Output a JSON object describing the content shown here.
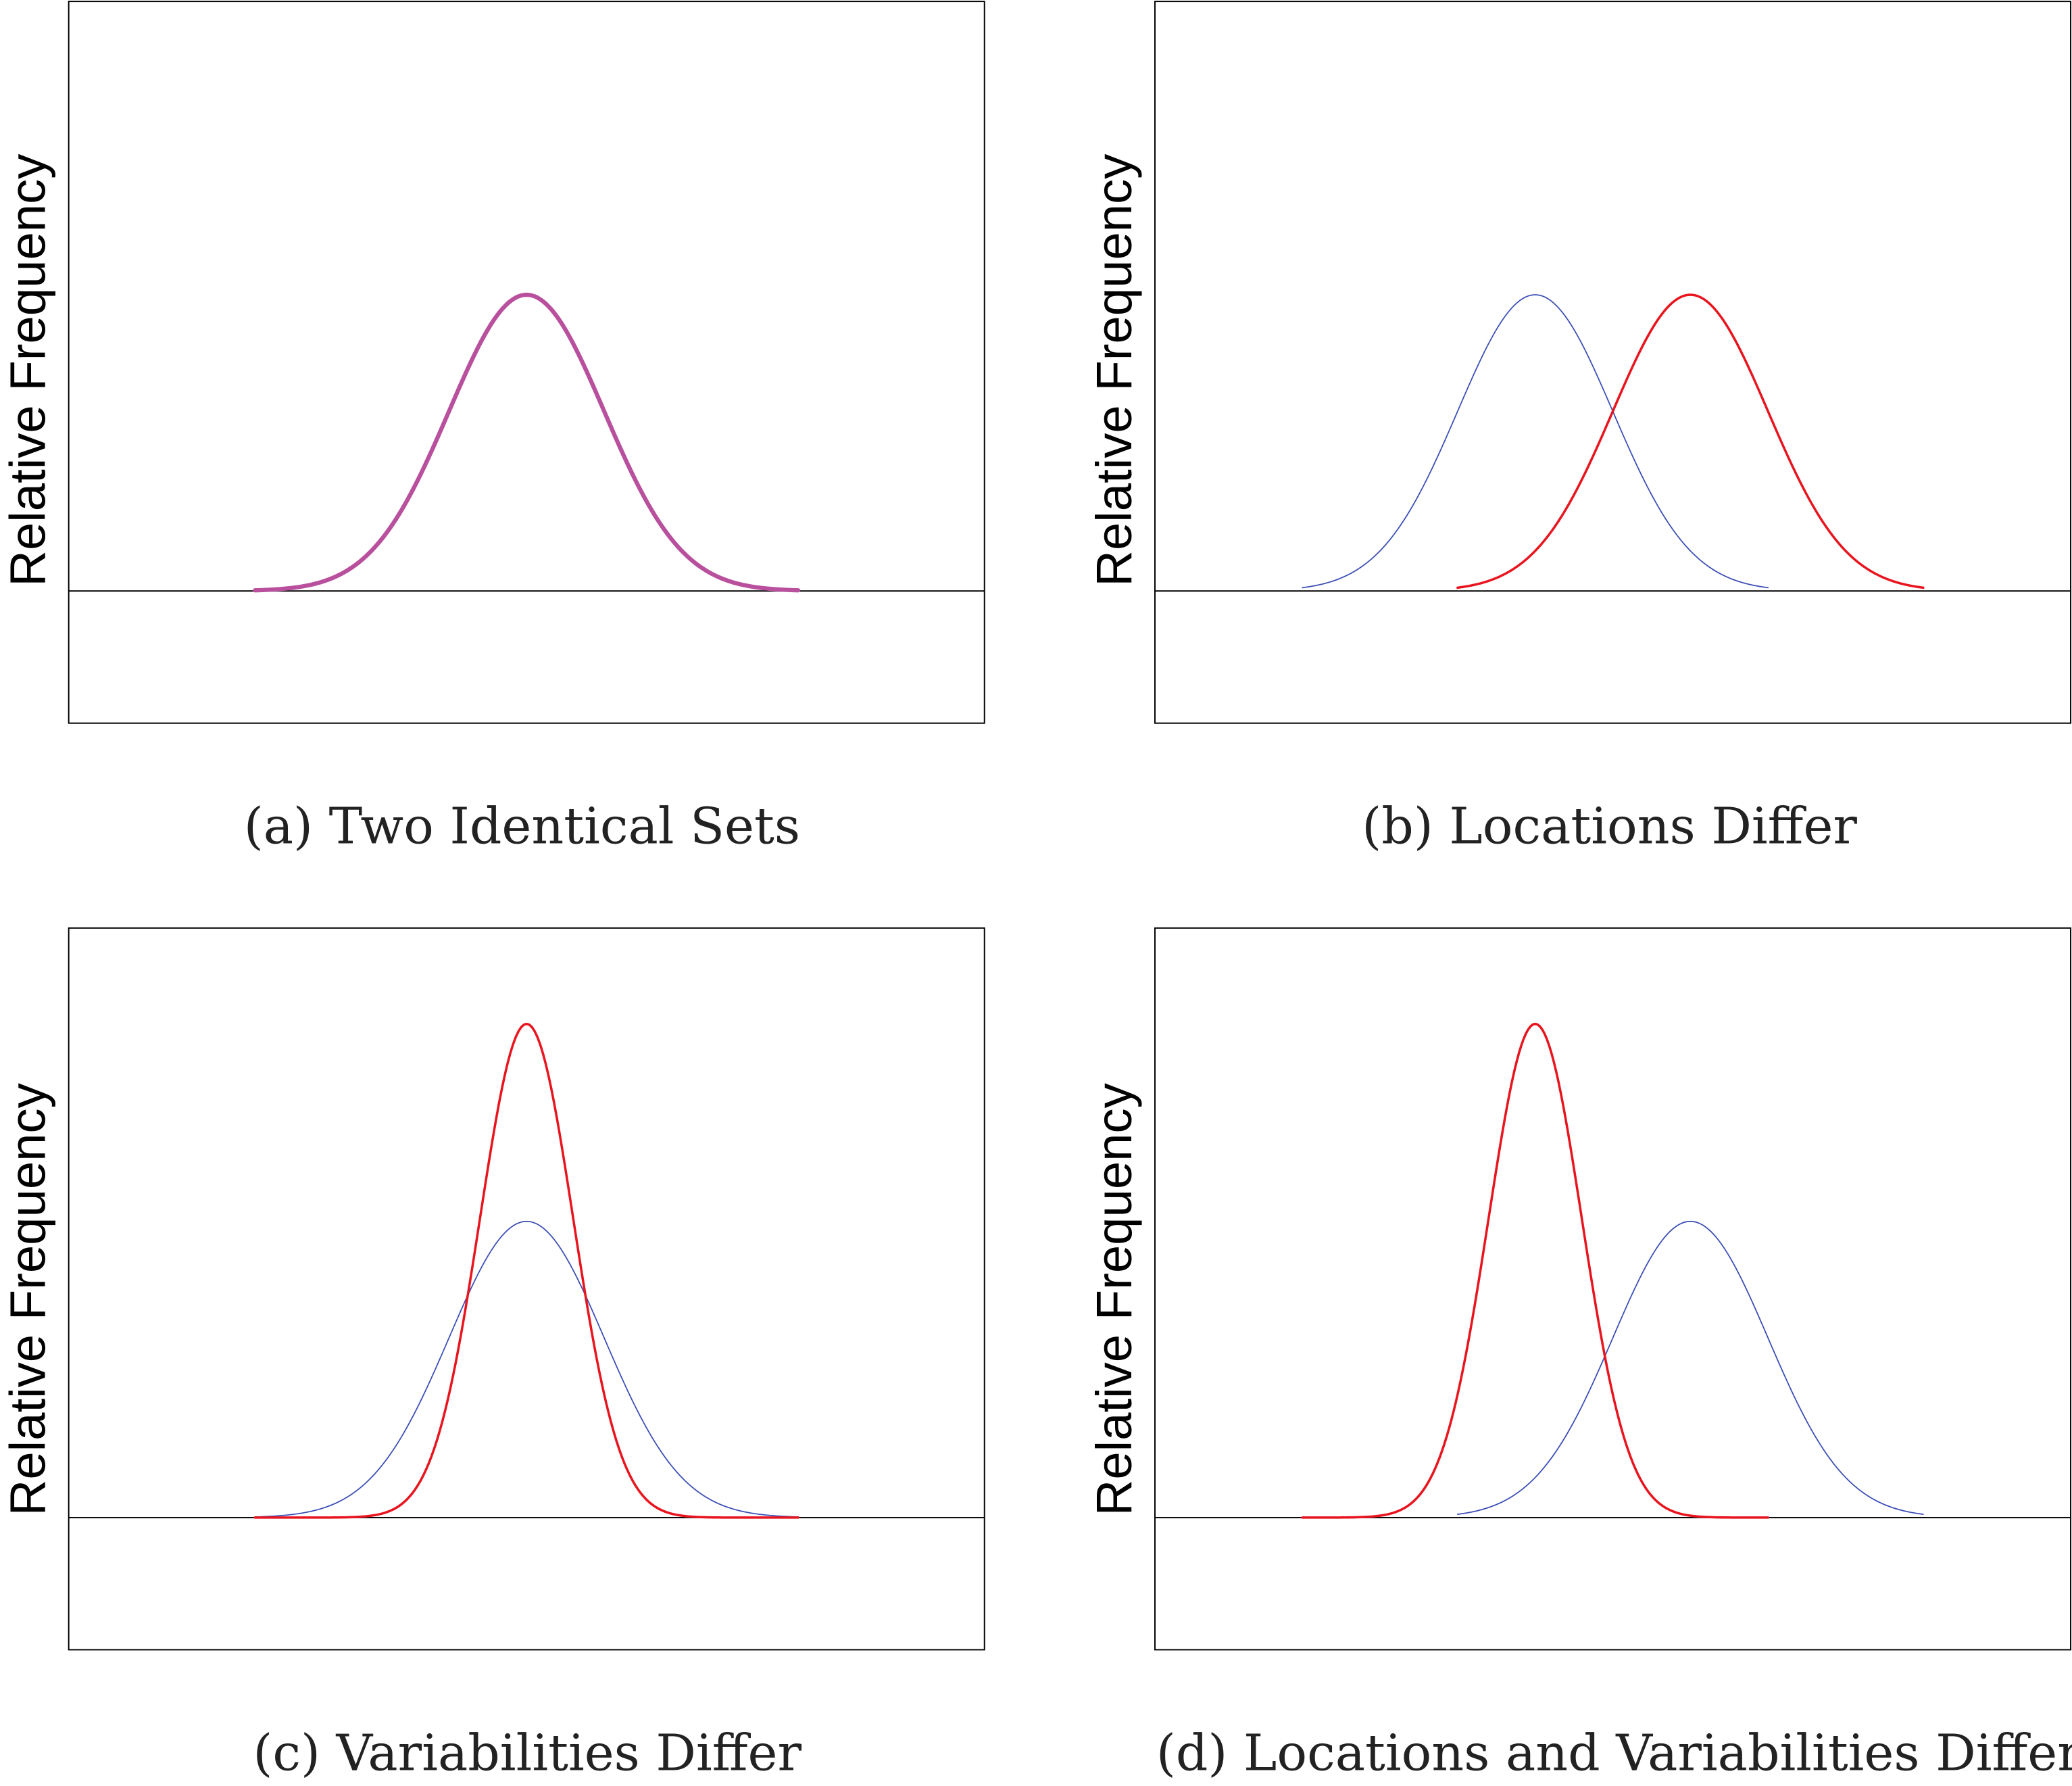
{
  "chart_data": [
    {
      "type": "line",
      "caption": "(a) Two Identical Sets",
      "ylabel": "Relative Frequency",
      "xlim": [
        -5.9,
        5.9
      ],
      "ylim": [
        -0.178,
        0.794
      ],
      "grid": false,
      "series": [
        {
          "kind": "normal",
          "mean": 0,
          "sd": 1,
          "x_range": [
            -3.5,
            3.5
          ],
          "color": "#b9509d",
          "width": "thick"
        }
      ]
    },
    {
      "type": "line",
      "caption": "(b) Locations Differ",
      "ylabel": "Relative Frequency",
      "xlim": [
        -5.9,
        5.9
      ],
      "ylim": [
        -0.178,
        0.794
      ],
      "grid": false,
      "series": [
        {
          "kind": "normal",
          "mean": -1,
          "sd": 1,
          "x_range": [
            -4,
            2
          ],
          "color": "#3a4db5",
          "width": "thin"
        },
        {
          "kind": "normal",
          "mean": 1,
          "sd": 1,
          "x_range": [
            -2,
            4
          ],
          "color": "#e8141e",
          "width": "medium"
        }
      ]
    },
    {
      "type": "line",
      "caption": "(c) Variabilities Differ",
      "ylabel": "Relative Frequency",
      "xlim": [
        -5.9,
        5.9
      ],
      "ylim": [
        -0.178,
        0.794
      ],
      "grid": false,
      "series": [
        {
          "kind": "normal",
          "mean": 0,
          "sd": 1,
          "x_range": [
            -3.5,
            3.5
          ],
          "color": "#3a4db5",
          "width": "thin"
        },
        {
          "kind": "normal",
          "mean": 0,
          "sd": 0.6,
          "x_range": [
            -3.5,
            3.5
          ],
          "color": "#e8141e",
          "width": "medium"
        }
      ]
    },
    {
      "type": "line",
      "caption": "(d) Locations and Variabilities Differ",
      "ylabel": "Relative Frequency",
      "xlim": [
        -5.9,
        5.9
      ],
      "ylim": [
        -0.178,
        0.794
      ],
      "grid": false,
      "series": [
        {
          "kind": "normal",
          "mean": 1,
          "sd": 1,
          "x_range": [
            -2,
            4
          ],
          "color": "#3a4db5",
          "width": "thin"
        },
        {
          "kind": "normal",
          "mean": -1,
          "sd": 0.6,
          "x_range": [
            -4,
            2
          ],
          "color": "#e8141e",
          "width": "medium"
        }
      ]
    }
  ]
}
